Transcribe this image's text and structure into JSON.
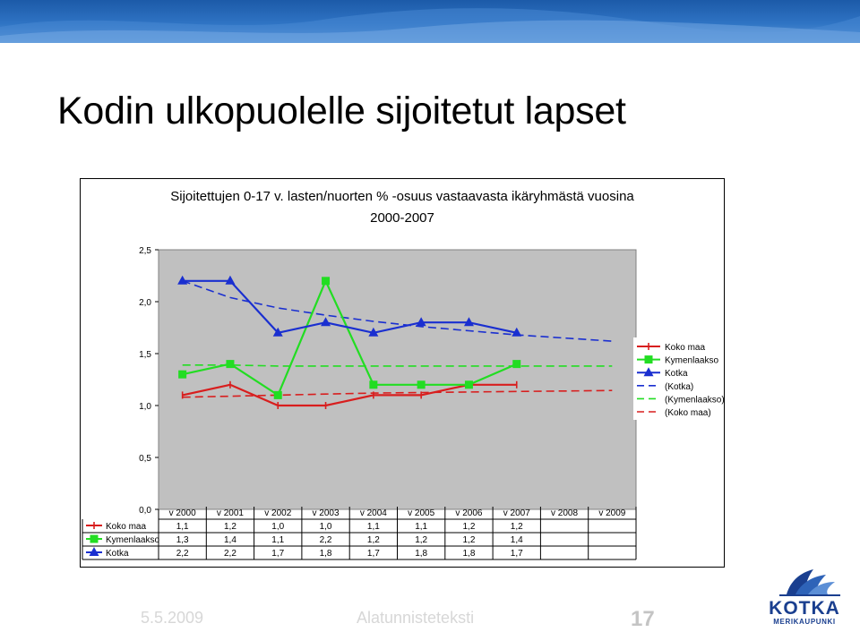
{
  "slide": {
    "title": "Kodin ulkopuolelle sijoitetut lapset",
    "footer_date": "5.5.2009",
    "footer_text": "Alatunnisteteksti",
    "page_number": "17"
  },
  "logo": {
    "name": "KOTKA",
    "sub": "MERIKAUPUNKI"
  },
  "colors": {
    "koko_maa": "#d81e1e",
    "kymenlaakso": "#22dd22",
    "kotka": "#1a2fd0",
    "band": "#2f74c4",
    "logo": "#1a3f8f"
  },
  "chart_data": {
    "type": "line",
    "title": "Sijoitettujen 0-17 v. lasten/nuorten % -osuus vastaavasta ikäryhmästä vuosina 2000-2007",
    "categories": [
      "v 2000",
      "v 2001",
      "v 2002",
      "v 2003",
      "v 2004",
      "v 2005",
      "v 2006",
      "v 2007",
      "v 2008",
      "v 2009"
    ],
    "ylim": [
      0,
      2.5
    ],
    "yticks": [
      "0,0",
      "0,5",
      "1,0",
      "1,5",
      "2,0",
      "2,5"
    ],
    "series": [
      {
        "name": "Koko maa",
        "marker": "cross",
        "values": [
          1.1,
          1.2,
          1.0,
          1.0,
          1.1,
          1.1,
          1.2,
          1.2,
          null,
          null
        ],
        "labels": [
          "1,1",
          "1,2",
          "1,0",
          "1,0",
          "1,1",
          "1,1",
          "1,2",
          "1,2",
          "",
          ""
        ]
      },
      {
        "name": "Kymenlaakso",
        "marker": "square",
        "values": [
          1.3,
          1.4,
          1.1,
          2.2,
          1.2,
          1.2,
          1.2,
          1.4,
          null,
          null
        ],
        "labels": [
          "1,3",
          "1,4",
          "1,1",
          "2,2",
          "1,2",
          "1,2",
          "1,2",
          "1,4",
          "",
          ""
        ]
      },
      {
        "name": "Kotka",
        "marker": "triangle",
        "values": [
          2.2,
          2.2,
          1.7,
          1.8,
          1.7,
          1.8,
          1.8,
          1.7,
          null,
          null
        ],
        "labels": [
          "2,2",
          "2,2",
          "1,7",
          "1,8",
          "1,7",
          "1,8",
          "1,8",
          "1,7",
          "",
          ""
        ]
      }
    ],
    "trendlines": [
      {
        "name": "(Kotka)",
        "color_key": "kotka",
        "base": "Kotka",
        "values": [
          2.2,
          2.04,
          1.94,
          1.87,
          1.81,
          1.76,
          1.72,
          1.68,
          1.65,
          1.62
        ]
      },
      {
        "name": "(Kymenlaakso)",
        "color_key": "kymenlaakso",
        "base": "Kymenlaakso",
        "values": [
          1.39,
          1.39,
          1.38,
          1.38,
          1.38,
          1.38,
          1.38,
          1.38,
          1.38,
          1.38
        ]
      },
      {
        "name": "(Koko maa)",
        "color_key": "koko_maa",
        "base": "Koko maa",
        "values": [
          1.08,
          1.09,
          1.1,
          1.11,
          1.12,
          1.125,
          1.13,
          1.135,
          1.14,
          1.145
        ]
      }
    ],
    "legend_position": "right",
    "grid": false
  }
}
